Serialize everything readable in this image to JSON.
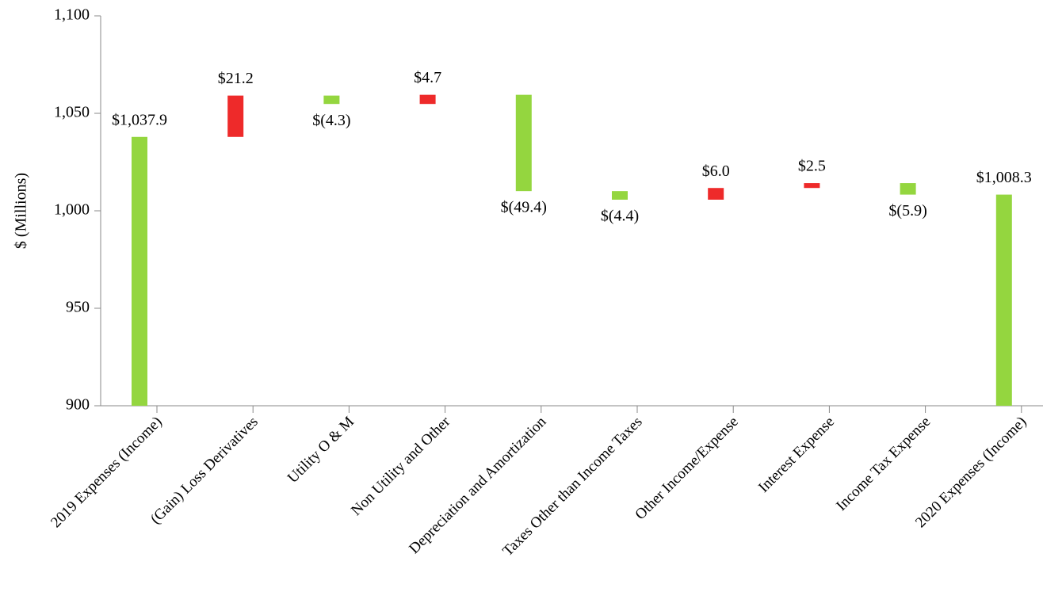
{
  "chart_data": {
    "type": "waterfall",
    "y_label": "$ (Millions)",
    "categories": [
      "2019 Expenses (Income)",
      "(Gain) Loss Derivatives",
      "Utility O & M",
      "Non Utility and Other",
      "Depreciation and Amortization",
      "Taxes Other than Income Taxes",
      "Other Income/Expense",
      "Interest Expense",
      "Income Tax Expense",
      "2020 Expenses (Income)"
    ],
    "values": [
      1037.9,
      21.2,
      -4.3,
      4.7,
      -49.4,
      -4.4,
      6.0,
      2.5,
      -5.9,
      1008.3
    ],
    "value_labels": [
      "$1,037.9",
      "$21.2",
      "$(4.3)",
      "$4.7",
      "$(49.4)",
      "$(4.4)",
      "$6.0",
      "$2.5",
      "$(5.9)",
      "$1,008.3"
    ],
    "increase_color": "#ee2a2a",
    "decrease_color": "#94d63f",
    "total_color": "#94d63f",
    "ylim": [
      900,
      1100
    ],
    "yticks": [
      900,
      950,
      {
        "value": 1000,
        "label": "1,000"
      },
      {
        "value": 1050,
        "label": "1,050"
      },
      {
        "value": 1100,
        "label": "1,100"
      }
    ]
  }
}
